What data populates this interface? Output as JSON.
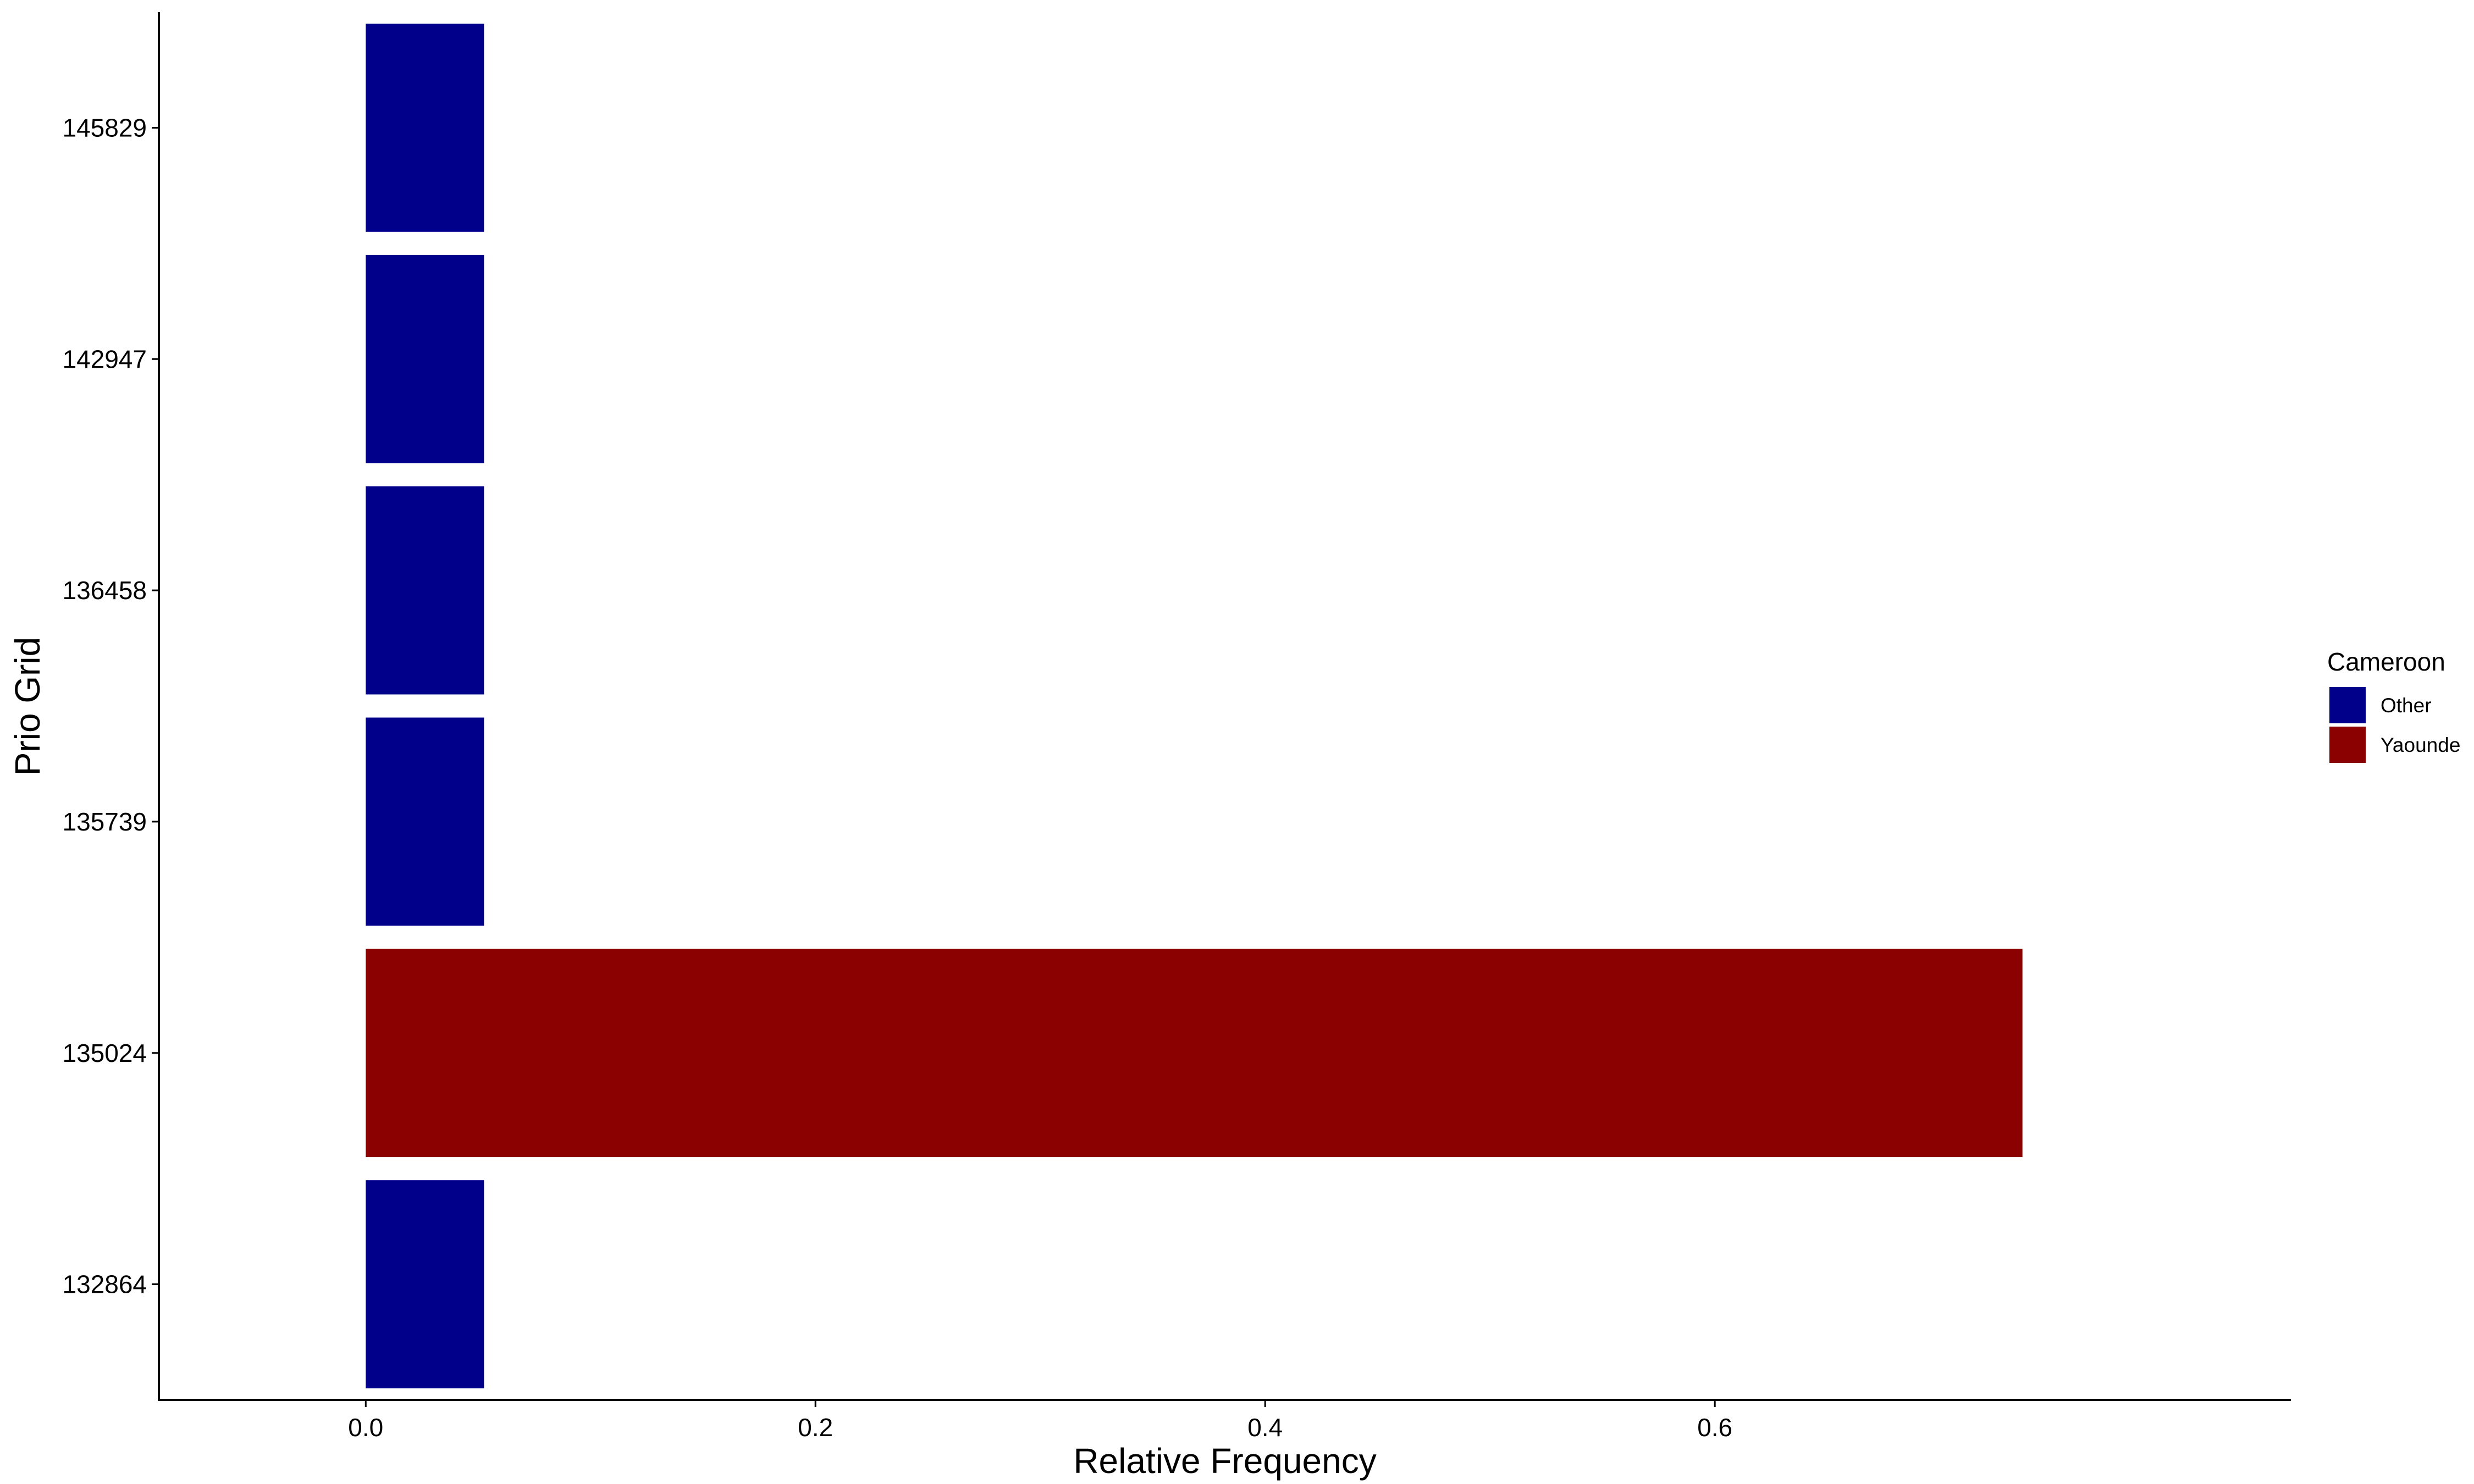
{
  "chart_data": {
    "type": "bar",
    "orientation": "horizontal",
    "title": "",
    "xlabel": "Relative Frequency",
    "ylabel": "Prio Grid",
    "xlim": [
      -0.092,
      0.8562
    ],
    "xticks": [
      0.0,
      0.2,
      0.4,
      0.6
    ],
    "xtick_labels": [
      "0.0",
      "0.2",
      "0.4",
      "0.6"
    ],
    "categories": [
      "132864",
      "135024",
      "135739",
      "136458",
      "142947",
      "145829"
    ],
    "bars": [
      {
        "category": "132864",
        "value": 0.0526,
        "group": "Other"
      },
      {
        "category": "135024",
        "value": 0.7368,
        "group": "Yaounde"
      },
      {
        "category": "135739",
        "value": 0.0526,
        "group": "Other"
      },
      {
        "category": "136458",
        "value": 0.0526,
        "group": "Other"
      },
      {
        "category": "142947",
        "value": 0.0526,
        "group": "Other"
      },
      {
        "category": "145829",
        "value": 0.0526,
        "group": "Other"
      }
    ],
    "legend": {
      "title": "Cameroon",
      "position": "right",
      "items": [
        {
          "label": "Other",
          "color": "#00008B"
        },
        {
          "label": "Yaounde",
          "color": "#8B0000"
        }
      ]
    },
    "grid": false
  }
}
